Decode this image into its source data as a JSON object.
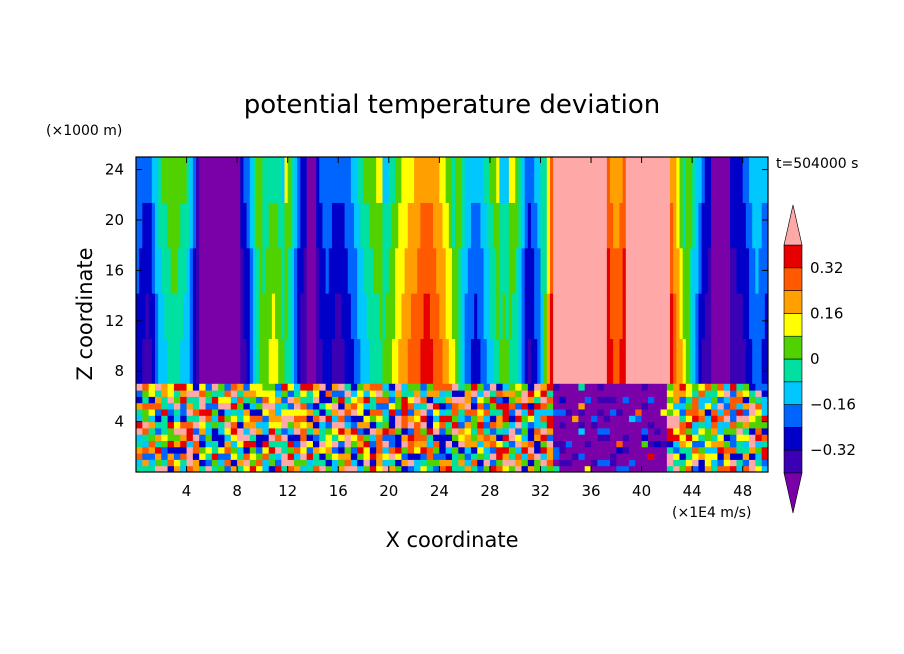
{
  "chart_data": {
    "type": "heatmap",
    "title": "potential temperature deviation",
    "xlabel": "X coordinate",
    "ylabel": "Z coordinate",
    "x_unit": "(×1E4 m/s)",
    "y_unit": "(×1000 m)",
    "time_label": "t=504000 s",
    "xlim": [
      0,
      50
    ],
    "ylim": [
      0,
      25
    ],
    "x_ticks": [
      4,
      8,
      12,
      16,
      20,
      24,
      28,
      32,
      36,
      40,
      44,
      48
    ],
    "x_tick_labels": [
      "4",
      "8",
      "12",
      "16",
      "20",
      "24",
      "28",
      "32",
      "36",
      "40",
      "44",
      "48"
    ],
    "y_ticks": [
      4,
      8,
      12,
      16,
      20,
      24
    ],
    "y_tick_labels": [
      "4",
      "8",
      "12",
      "16",
      "20",
      "24"
    ],
    "colorbar": {
      "levels": [
        -0.4,
        -0.32,
        -0.24,
        -0.16,
        -0.08,
        0,
        0.08,
        0.16,
        0.24,
        0.32,
        0.4
      ],
      "labels": [
        "0.32",
        "0.16",
        "0",
        "−0.16",
        "−0.32"
      ],
      "label_values": [
        0.32,
        0.16,
        0,
        -0.16,
        -0.32
      ],
      "colors": [
        "#7a00a8",
        "#3c00b4",
        "#0000c8",
        "#0064ff",
        "#00c8ff",
        "#00e0a0",
        "#50d200",
        "#ffff00",
        "#ffa000",
        "#ff5a00",
        "#e60000",
        "#ffa8a8"
      ],
      "extend": "both"
    },
    "field": {
      "layer_boundary_z": 7,
      "upper_columns": [
        {
          "x": 0,
          "lvl": 2
        },
        {
          "x": 1,
          "lvl": 1
        },
        {
          "x": 2,
          "lvl": 4
        },
        {
          "x": 3,
          "lvl": 5
        },
        {
          "x": 4,
          "lvl": 4
        },
        {
          "x": 5,
          "lvl": 0
        },
        {
          "x": 8,
          "lvl": 0
        },
        {
          "x": 9,
          "lvl": 2
        },
        {
          "x": 10,
          "lvl": 6
        },
        {
          "x": 11,
          "lvl": 7
        },
        {
          "x": 12,
          "lvl": 5
        },
        {
          "x": 13,
          "lvl": 1
        },
        {
          "x": 14,
          "lvl": 0
        },
        {
          "x": 15,
          "lvl": 2
        },
        {
          "x": 16,
          "lvl": 1
        },
        {
          "x": 17,
          "lvl": 2
        },
        {
          "x": 18,
          "lvl": 4
        },
        {
          "x": 19,
          "lvl": 5
        },
        {
          "x": 20,
          "lvl": 6
        },
        {
          "x": 21,
          "lvl": 8
        },
        {
          "x": 22,
          "lvl": 9
        },
        {
          "x": 23,
          "lvl": 10
        },
        {
          "x": 24,
          "lvl": 9
        },
        {
          "x": 25,
          "lvl": 7
        },
        {
          "x": 26,
          "lvl": 3
        },
        {
          "x": 27,
          "lvl": 2
        },
        {
          "x": 28,
          "lvl": 4
        },
        {
          "x": 29,
          "lvl": 6
        },
        {
          "x": 30,
          "lvl": 5
        },
        {
          "x": 31,
          "lvl": 1
        },
        {
          "x": 32,
          "lvl": 3
        },
        {
          "x": 33,
          "lvl": 11
        },
        {
          "x": 37,
          "lvl": 11
        },
        {
          "x": 38,
          "lvl": 9
        },
        {
          "x": 39,
          "lvl": 11
        },
        {
          "x": 42,
          "lvl": 11
        },
        {
          "x": 43,
          "lvl": 8
        },
        {
          "x": 44,
          "lvl": 4
        },
        {
          "x": 45,
          "lvl": 1
        },
        {
          "x": 46,
          "lvl": 0
        },
        {
          "x": 48,
          "lvl": 1
        },
        {
          "x": 49,
          "lvl": 3
        },
        {
          "x": 50,
          "lvl": 2
        }
      ],
      "lower_mix_levels": [
        11,
        9,
        8,
        7,
        5,
        4,
        3,
        2,
        10,
        6
      ]
    }
  }
}
